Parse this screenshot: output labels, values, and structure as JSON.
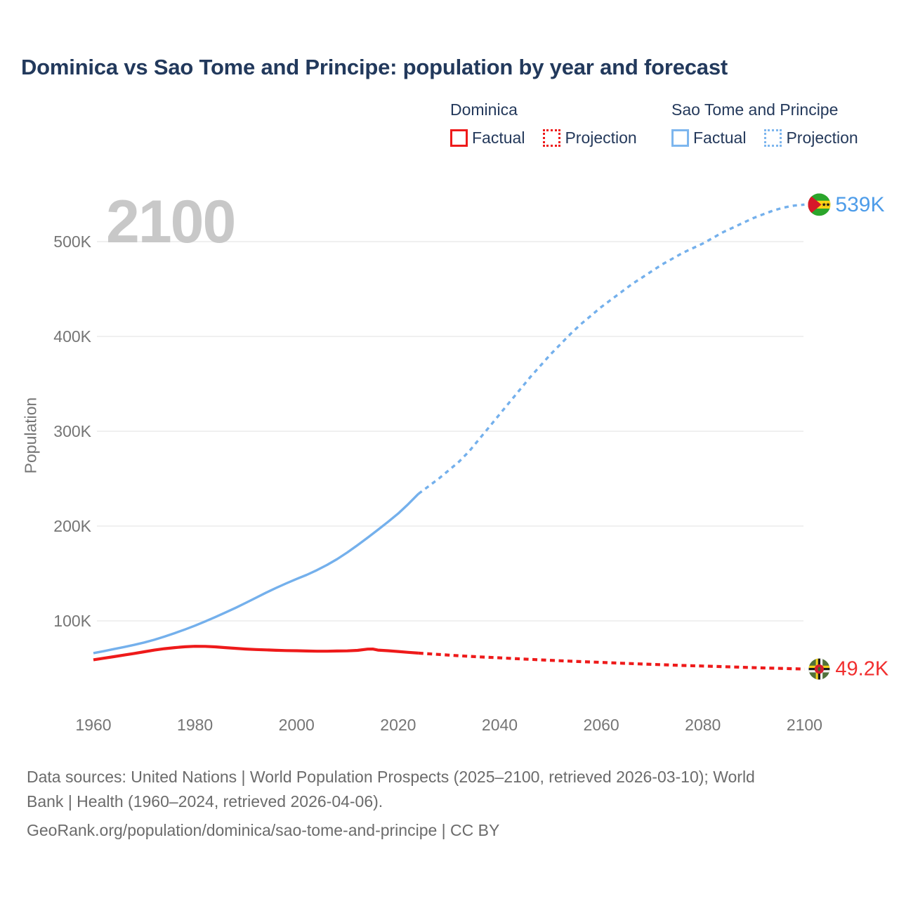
{
  "title": "Dominica vs Sao Tome and Principe: population by year and forecast",
  "watermark": "2100",
  "legend": {
    "groups": [
      {
        "name": "Dominica",
        "color": "#ee1a1a",
        "items": [
          {
            "label": "Factual",
            "style": "solid"
          },
          {
            "label": "Projection",
            "style": "dotted"
          }
        ]
      },
      {
        "name": "Sao Tome and Principe",
        "color": "#7db6ee",
        "items": [
          {
            "label": "Factual",
            "style": "solid"
          },
          {
            "label": "Projection",
            "style": "dotted"
          }
        ]
      }
    ]
  },
  "chart_data": {
    "type": "line",
    "title": "Dominica vs Sao Tome and Principe: population by year and forecast",
    "xlabel": "",
    "ylabel": "Population",
    "units": "population, thousands (K)",
    "x_range": [
      1960,
      2100
    ],
    "ylim_k": [
      0,
      560
    ],
    "grid": "horizontal",
    "x_ticks": [
      "1960",
      "1980",
      "2000",
      "2020",
      "2040",
      "2060",
      "2080",
      "2100"
    ],
    "x_tick_years": [
      1960,
      1980,
      2000,
      2020,
      2040,
      2060,
      2080,
      2100
    ],
    "y_ticks": [
      "100K",
      "200K",
      "300K",
      "400K",
      "500K"
    ],
    "y_tick_values_k": [
      100,
      200,
      300,
      400,
      500
    ],
    "series": [
      {
        "name": "Sao Tome and Principe — Factual",
        "color": "#74b0ec",
        "style": "solid",
        "points_year_k": [
          [
            1960,
            66
          ],
          [
            1962,
            68
          ],
          [
            1964,
            70.2
          ],
          [
            1966,
            72.4
          ],
          [
            1968,
            74.7
          ],
          [
            1970,
            77.2
          ],
          [
            1972,
            80.1
          ],
          [
            1974,
            83.4
          ],
          [
            1976,
            87
          ],
          [
            1978,
            90.9
          ],
          [
            1980,
            95
          ],
          [
            1982,
            99.4
          ],
          [
            1984,
            104
          ],
          [
            1986,
            108.8
          ],
          [
            1988,
            113.8
          ],
          [
            1990,
            119
          ],
          [
            1992,
            124.4
          ],
          [
            1994,
            129.8
          ],
          [
            1996,
            134.8
          ],
          [
            1998,
            139.6
          ],
          [
            2000,
            144.2
          ],
          [
            2002,
            148.5
          ],
          [
            2004,
            153.5
          ],
          [
            2006,
            159
          ],
          [
            2008,
            165.2
          ],
          [
            2010,
            172.2
          ],
          [
            2012,
            179.8
          ],
          [
            2014,
            187.8
          ],
          [
            2016,
            196
          ],
          [
            2018,
            204.4
          ],
          [
            2020,
            213.2
          ],
          [
            2022,
            223.2
          ],
          [
            2024,
            234
          ]
        ]
      },
      {
        "name": "Sao Tome and Principe — Projection",
        "color": "#74b0ec",
        "style": "dashed",
        "end_label": "539K",
        "end_label_color": "#4d9ce9",
        "end_flag": "sao-tome-flag",
        "points_year_k": [
          [
            2024,
            234
          ],
          [
            2026,
            242
          ],
          [
            2028,
            250
          ],
          [
            2030,
            259
          ],
          [
            2032,
            268
          ],
          [
            2034,
            279
          ],
          [
            2036,
            292
          ],
          [
            2038,
            305
          ],
          [
            2040,
            318
          ],
          [
            2042,
            331
          ],
          [
            2044,
            344
          ],
          [
            2046,
            357
          ],
          [
            2048,
            369
          ],
          [
            2050,
            381
          ],
          [
            2052,
            392
          ],
          [
            2054,
            403
          ],
          [
            2056,
            413
          ],
          [
            2058,
            422
          ],
          [
            2060,
            431
          ],
          [
            2062,
            439
          ],
          [
            2064,
            447
          ],
          [
            2066,
            455
          ],
          [
            2068,
            462
          ],
          [
            2070,
            469
          ],
          [
            2072,
            476
          ],
          [
            2074,
            482
          ],
          [
            2076,
            488
          ],
          [
            2078,
            493
          ],
          [
            2080,
            498
          ],
          [
            2082,
            504
          ],
          [
            2084,
            510
          ],
          [
            2086,
            515
          ],
          [
            2088,
            520
          ],
          [
            2090,
            525
          ],
          [
            2092,
            529
          ],
          [
            2094,
            533
          ],
          [
            2096,
            536
          ],
          [
            2098,
            538
          ],
          [
            2100,
            539
          ]
        ]
      },
      {
        "name": "Dominica — Factual",
        "color": "#ee1a1a",
        "style": "solid",
        "points_year_k": [
          [
            1960,
            59
          ],
          [
            1962,
            60.6
          ],
          [
            1964,
            62.2
          ],
          [
            1966,
            63.9
          ],
          [
            1968,
            65.6
          ],
          [
            1970,
            67.4
          ],
          [
            1972,
            69.2
          ],
          [
            1974,
            70.7
          ],
          [
            1976,
            71.8
          ],
          [
            1978,
            72.7
          ],
          [
            1980,
            73.2
          ],
          [
            1982,
            73.1
          ],
          [
            1984,
            72.6
          ],
          [
            1986,
            71.8
          ],
          [
            1988,
            71
          ],
          [
            1990,
            70.3
          ],
          [
            1992,
            69.8
          ],
          [
            1994,
            69.4
          ],
          [
            1996,
            69
          ],
          [
            1998,
            68.7
          ],
          [
            2000,
            68.5
          ],
          [
            2002,
            68.2
          ],
          [
            2004,
            68
          ],
          [
            2006,
            68
          ],
          [
            2008,
            68.2
          ],
          [
            2010,
            68.4
          ],
          [
            2012,
            68.9
          ],
          [
            2014,
            70.2
          ],
          [
            2015,
            70.3
          ],
          [
            2016,
            69.2
          ],
          [
            2018,
            68.5
          ],
          [
            2020,
            67.7
          ],
          [
            2022,
            66.8
          ],
          [
            2024,
            66
          ]
        ]
      },
      {
        "name": "Dominica — Projection",
        "color": "#ee1a1a",
        "style": "dashed",
        "end_label": "49.2K",
        "end_label_color": "#f12f2f",
        "end_flag": "dominica-flag",
        "points_year_k": [
          [
            2024,
            66
          ],
          [
            2028,
            64.6
          ],
          [
            2032,
            63.2
          ],
          [
            2036,
            62
          ],
          [
            2040,
            61
          ],
          [
            2044,
            59.9
          ],
          [
            2048,
            58.9
          ],
          [
            2052,
            57.9
          ],
          [
            2056,
            57
          ],
          [
            2060,
            56.2
          ],
          [
            2064,
            55.3
          ],
          [
            2068,
            54.5
          ],
          [
            2072,
            53.8
          ],
          [
            2076,
            53
          ],
          [
            2080,
            52.4
          ],
          [
            2084,
            51.7
          ],
          [
            2088,
            51
          ],
          [
            2092,
            50.4
          ],
          [
            2096,
            49.8
          ],
          [
            2100,
            49.2
          ]
        ]
      }
    ]
  },
  "footer": {
    "line1": "Data sources: United Nations | World Population Prospects (2025–2100, retrieved 2026-03-10); World",
    "line2": "Bank | Health (1960–2024, retrieved 2026-04-06).",
    "line3": "GeoRank.org/population/dominica/sao-tome-and-principe | CC BY"
  }
}
